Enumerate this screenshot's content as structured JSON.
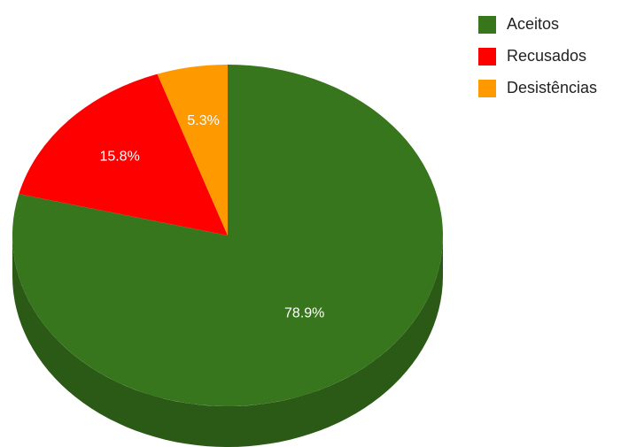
{
  "chart_data": {
    "type": "pie",
    "style": "3d",
    "title": "",
    "legend_position": "right",
    "slices": [
      {
        "label": "Aceitos",
        "value": 78.9,
        "display": "78.9%",
        "color": "#38761d",
        "side_color": "#2a5a16"
      },
      {
        "label": "Recusados",
        "value": 15.8,
        "display": "15.8%",
        "color": "#ff0000",
        "side_color": "#bf0000"
      },
      {
        "label": "Desistências",
        "value": 5.3,
        "display": "5.3%",
        "color": "#ff9900",
        "side_color": "#bf7300"
      }
    ]
  }
}
